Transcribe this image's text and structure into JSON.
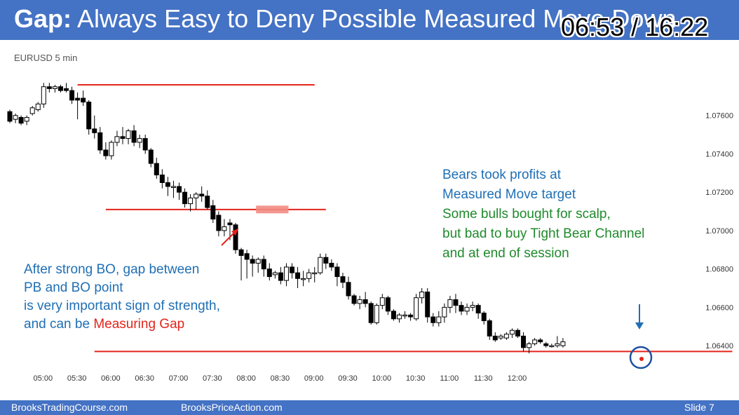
{
  "slide": {
    "title_prefix": "Gap:",
    "title_rest": " Always Easy to Deny Possible Measured Move Down",
    "video_time": "06:53 / 16:22",
    "footer_left": "BrooksTradingCourse.com",
    "footer_center": "BrooksPriceAction.com",
    "footer_right": "Slide  7"
  },
  "annotations": {
    "left_line1": "After strong BO, gap between",
    "left_line2": "PB and BO point",
    "left_line3": "is very important sign of strength,",
    "left_line4_prefix": "and can be ",
    "left_line4_highlight": "Measuring Gap",
    "right_line1": "Bears took profits at",
    "right_line2": "Measured Move target",
    "right_line3": "Some bulls bought for scalp,",
    "right_line4": "but bad to buy Tight Bear Channel",
    "right_line5": "and at end of session"
  },
  "colors": {
    "title_bar": "#4472c4",
    "level_line": "#e3241b",
    "gap_highlight": "#f28b82",
    "annotation_blue": "#1f6fb5",
    "annotation_green": "#1f8a2c",
    "marker_circle": "#1f4fa0"
  },
  "chart_data": {
    "type": "candlestick",
    "symbol_label": "EURUSD 5 min",
    "yaxis_side": "right",
    "ylim": [
      1.0632,
      1.078
    ],
    "yticks": [
      "1.07600",
      "1.07400",
      "1.07200",
      "1.07000",
      "1.06800",
      "1.06600",
      "1.06400"
    ],
    "ytick_values": [
      1.076,
      1.074,
      1.072,
      1.07,
      1.068,
      1.066,
      1.064
    ],
    "xticks": [
      "05:00",
      "05:30",
      "06:00",
      "06:30",
      "07:00",
      "07:30",
      "08:00",
      "08:30",
      "09:00",
      "09:30",
      "10:00",
      "10:30",
      "11:00",
      "11:30",
      "12:00"
    ],
    "xtick_bar_index": [
      6,
      12,
      18,
      24,
      30,
      36,
      42,
      48,
      54,
      60,
      66,
      72,
      78,
      84,
      90
    ],
    "bars_per_label": 6,
    "candles": [
      [
        1.0762,
        1.0763,
        1.0756,
        1.0757
      ],
      [
        1.0758,
        1.0761,
        1.0756,
        1.076
      ],
      [
        1.0759,
        1.076,
        1.0755,
        1.0756
      ],
      [
        1.0757,
        1.076,
        1.0755,
        1.0759
      ],
      [
        1.0761,
        1.0765,
        1.076,
        1.0764
      ],
      [
        1.0763,
        1.0767,
        1.0762,
        1.0766
      ],
      [
        1.0766,
        1.0777,
        1.0764,
        1.0775
      ],
      [
        1.0775,
        1.0777,
        1.0772,
        1.0774
      ],
      [
        1.0774,
        1.0776,
        1.0772,
        1.0775
      ],
      [
        1.0775,
        1.0776,
        1.0772,
        1.0773
      ],
      [
        1.0774,
        1.0777,
        1.0772,
        1.0773
      ],
      [
        1.0773,
        1.0775,
        1.0766,
        1.0768
      ],
      [
        1.0769,
        1.0772,
        1.0758,
        1.0768
      ],
      [
        1.0769,
        1.0773,
        1.0765,
        1.0767
      ],
      [
        1.0767,
        1.0768,
        1.075,
        1.0753
      ],
      [
        1.0753,
        1.076,
        1.0748,
        1.0751
      ],
      [
        1.0751,
        1.0754,
        1.074,
        1.0742
      ],
      [
        1.0742,
        1.0746,
        1.0737,
        1.0739
      ],
      [
        1.0739,
        1.0747,
        1.0737,
        1.0746
      ],
      [
        1.0746,
        1.0752,
        1.0744,
        1.0749
      ],
      [
        1.0749,
        1.0754,
        1.0745,
        1.0748
      ],
      [
        1.0748,
        1.0753,
        1.0745,
        1.0752
      ],
      [
        1.0752,
        1.0755,
        1.0744,
        1.0746
      ],
      [
        1.0746,
        1.075,
        1.0743,
        1.0748
      ],
      [
        1.0748,
        1.075,
        1.074,
        1.0742
      ],
      [
        1.0742,
        1.0743,
        1.0733,
        1.0735
      ],
      [
        1.0735,
        1.0738,
        1.0727,
        1.0729
      ],
      [
        1.0729,
        1.0732,
        1.0722,
        1.0725
      ],
      [
        1.0725,
        1.0728,
        1.0718,
        1.0723
      ],
      [
        1.0723,
        1.0726,
        1.0717,
        1.0723
      ],
      [
        1.0723,
        1.0725,
        1.0716,
        1.072
      ],
      [
        1.072,
        1.0722,
        1.0712,
        1.0714
      ],
      [
        1.0714,
        1.0719,
        1.071,
        1.0717
      ],
      [
        1.0717,
        1.072,
        1.0711,
        1.0719
      ],
      [
        1.0719,
        1.0723,
        1.0715,
        1.0718
      ],
      [
        1.0718,
        1.0721,
        1.0711,
        1.0712
      ],
      [
        1.0713,
        1.0716,
        1.0704,
        1.0706
      ],
      [
        1.0708,
        1.071,
        1.0697,
        1.07
      ],
      [
        1.07,
        1.0706,
        1.0697,
        1.0702
      ],
      [
        1.0704,
        1.0706,
        1.0695,
        1.0703
      ],
      [
        1.0703,
        1.0704,
        1.0688,
        1.069
      ],
      [
        1.069,
        1.0691,
        1.0674,
        1.0687
      ],
      [
        1.0688,
        1.069,
        1.0675,
        1.0685
      ],
      [
        1.0685,
        1.0687,
        1.0676,
        1.0683
      ],
      [
        1.0683,
        1.0686,
        1.0678,
        1.0685
      ],
      [
        1.0685,
        1.0687,
        1.0676,
        1.068
      ],
      [
        1.068,
        1.0683,
        1.0674,
        1.0676
      ],
      [
        1.0677,
        1.0679,
        1.0675,
        1.0678
      ],
      [
        1.0678,
        1.0681,
        1.0672,
        1.0674
      ],
      [
        1.0674,
        1.0683,
        1.0671,
        1.0681
      ],
      [
        1.0681,
        1.0683,
        1.0675,
        1.0678
      ],
      [
        1.0678,
        1.0681,
        1.067,
        1.0675
      ],
      [
        1.0675,
        1.0679,
        1.0671,
        1.0675
      ],
      [
        1.0675,
        1.068,
        1.0673,
        1.0678
      ],
      [
        1.0678,
        1.0681,
        1.0673,
        1.0678
      ],
      [
        1.0678,
        1.0688,
        1.0677,
        1.0686
      ],
      [
        1.0686,
        1.0688,
        1.068,
        1.0683
      ],
      [
        1.0683,
        1.0685,
        1.0679,
        1.0681
      ],
      [
        1.0681,
        1.0683,
        1.0671,
        1.0676
      ],
      [
        1.0676,
        1.0678,
        1.067,
        1.0673
      ],
      [
        1.0673,
        1.0676,
        1.0664,
        1.0666
      ],
      [
        1.0666,
        1.0667,
        1.0661,
        1.0662
      ],
      [
        1.0662,
        1.0666,
        1.0659,
        1.0664
      ],
      [
        1.0664,
        1.0668,
        1.066,
        1.0662
      ],
      [
        1.0662,
        1.0663,
        1.0651,
        1.0652
      ],
      [
        1.0652,
        1.0662,
        1.0651,
        1.0661
      ],
      [
        1.0661,
        1.0667,
        1.0659,
        1.0665
      ],
      [
        1.0665,
        1.0666,
        1.0656,
        1.0658
      ],
      [
        1.0658,
        1.0659,
        1.0653,
        1.0654
      ],
      [
        1.0654,
        1.0657,
        1.0652,
        1.0656
      ],
      [
        1.0656,
        1.0658,
        1.0654,
        1.0656
      ],
      [
        1.0656,
        1.0657,
        1.0653,
        1.0655
      ],
      [
        1.0654,
        1.0667,
        1.0653,
        1.0665
      ],
      [
        1.0665,
        1.067,
        1.0662,
        1.0668
      ],
      [
        1.0668,
        1.067,
        1.0652,
        1.0655
      ],
      [
        1.0655,
        1.0657,
        1.065,
        1.0652
      ],
      [
        1.0652,
        1.0658,
        1.065,
        1.0655
      ],
      [
        1.0655,
        1.0662,
        1.0652,
        1.066
      ],
      [
        1.066,
        1.0666,
        1.0657,
        1.0664
      ],
      [
        1.0664,
        1.0667,
        1.0657,
        1.0661
      ],
      [
        1.0661,
        1.0663,
        1.0656,
        1.0658
      ],
      [
        1.0658,
        1.0662,
        1.0656,
        1.066
      ],
      [
        1.066,
        1.0663,
        1.0658,
        1.0661
      ],
      [
        1.0661,
        1.0662,
        1.0654,
        1.0657
      ],
      [
        1.0657,
        1.0658,
        1.0651,
        1.0653
      ],
      [
        1.0653,
        1.0654,
        1.0643,
        1.0645
      ],
      [
        1.0645,
        1.0647,
        1.0642,
        1.0643
      ],
      [
        1.0644,
        1.0646,
        1.0643,
        1.0645
      ],
      [
        1.0644,
        1.0647,
        1.0643,
        1.0646
      ],
      [
        1.0646,
        1.0649,
        1.0644,
        1.0648
      ],
      [
        1.0648,
        1.0649,
        1.0644,
        1.0645
      ],
      [
        1.0645,
        1.0647,
        1.0637,
        1.0639
      ],
      [
        1.0639,
        1.0642,
        1.0636,
        1.0641
      ],
      [
        1.0641,
        1.0644,
        1.064,
        1.0643
      ],
      [
        1.0643,
        1.0644,
        1.0641,
        1.0642
      ],
      [
        1.0641,
        1.0642,
        1.0639,
        1.064
      ],
      [
        1.064,
        1.0641,
        1.0639,
        1.064
      ],
      [
        1.064,
        1.0645,
        1.0639,
        1.0641
      ],
      [
        1.064,
        1.0644,
        1.0639,
        1.0642
      ]
    ],
    "levels": [
      {
        "price": 1.0776,
        "from_bar": 12,
        "to_bar": 54
      },
      {
        "price": 1.0711,
        "from_bar": 17,
        "to_bar": 56
      },
      {
        "price": 1.0637,
        "from_bar": 15,
        "to_bar": 128
      }
    ],
    "gap_zone": {
      "from_bar": 44,
      "to_bar": 49,
      "price_high": 1.0713,
      "price_low": 1.0709
    }
  }
}
